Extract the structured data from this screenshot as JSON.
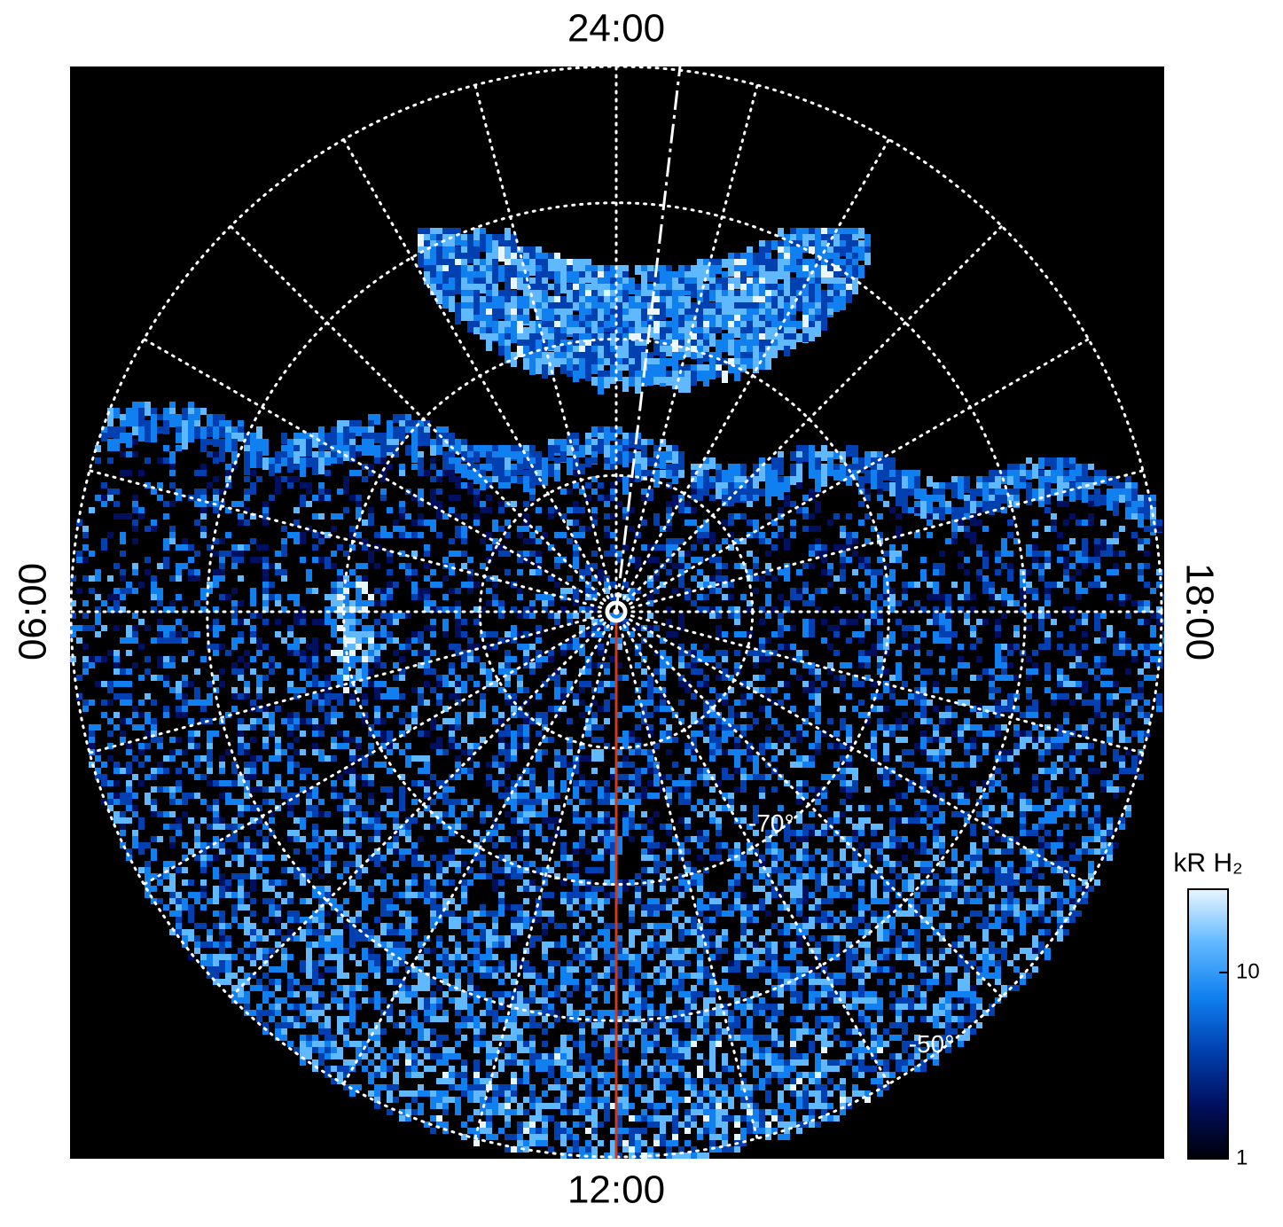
{
  "chart_data": {
    "type": "polar",
    "mlt_ticks": [
      {
        "value": 24,
        "label": "24:00"
      },
      {
        "value": 6,
        "label": "06:00"
      },
      {
        "value": 12,
        "label": "12:00"
      },
      {
        "value": 18,
        "label": "18:00"
      }
    ],
    "rlim": [
      -90,
      -50
    ],
    "lat_circles": [
      -80,
      -70,
      -60,
      -50
    ],
    "lat_labels": [
      {
        "value": -70,
        "label": "-70°"
      },
      {
        "value": -50,
        "label": "-50°"
      }
    ],
    "grid": true,
    "colorbar": {
      "label": "kR H₂",
      "lim": [
        1,
        28
      ],
      "ticks": [
        1,
        10
      ],
      "log": true,
      "colors": [
        "#000008",
        "#001060",
        "#0040b0",
        "#1080f0",
        "#60b8ff",
        "#e8f6ff"
      ]
    }
  }
}
